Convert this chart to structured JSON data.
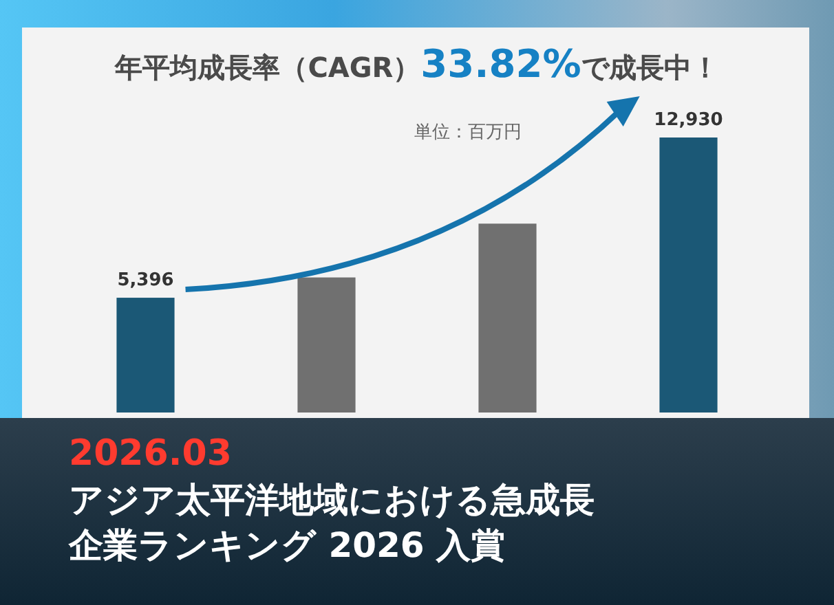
{
  "chart_data": {
    "type": "bar",
    "title": "年平均成長率（CAGR）**33.82%**で成長中！",
    "categories": [
      null,
      null,
      null,
      null
    ],
    "values": [
      5396,
      6350,
      8880,
      12930
    ],
    "colors": [
      "#1b5876",
      "#707070",
      "#707070",
      "#1b5876"
    ],
    "value_labels": [
      "5,396",
      null,
      null,
      "12,930"
    ],
    "annotations": [
      "単位：百万円",
      "2026.03",
      "アジア太平洋地域における急成長企業ランキング 2026 入賞"
    ]
  }
}
